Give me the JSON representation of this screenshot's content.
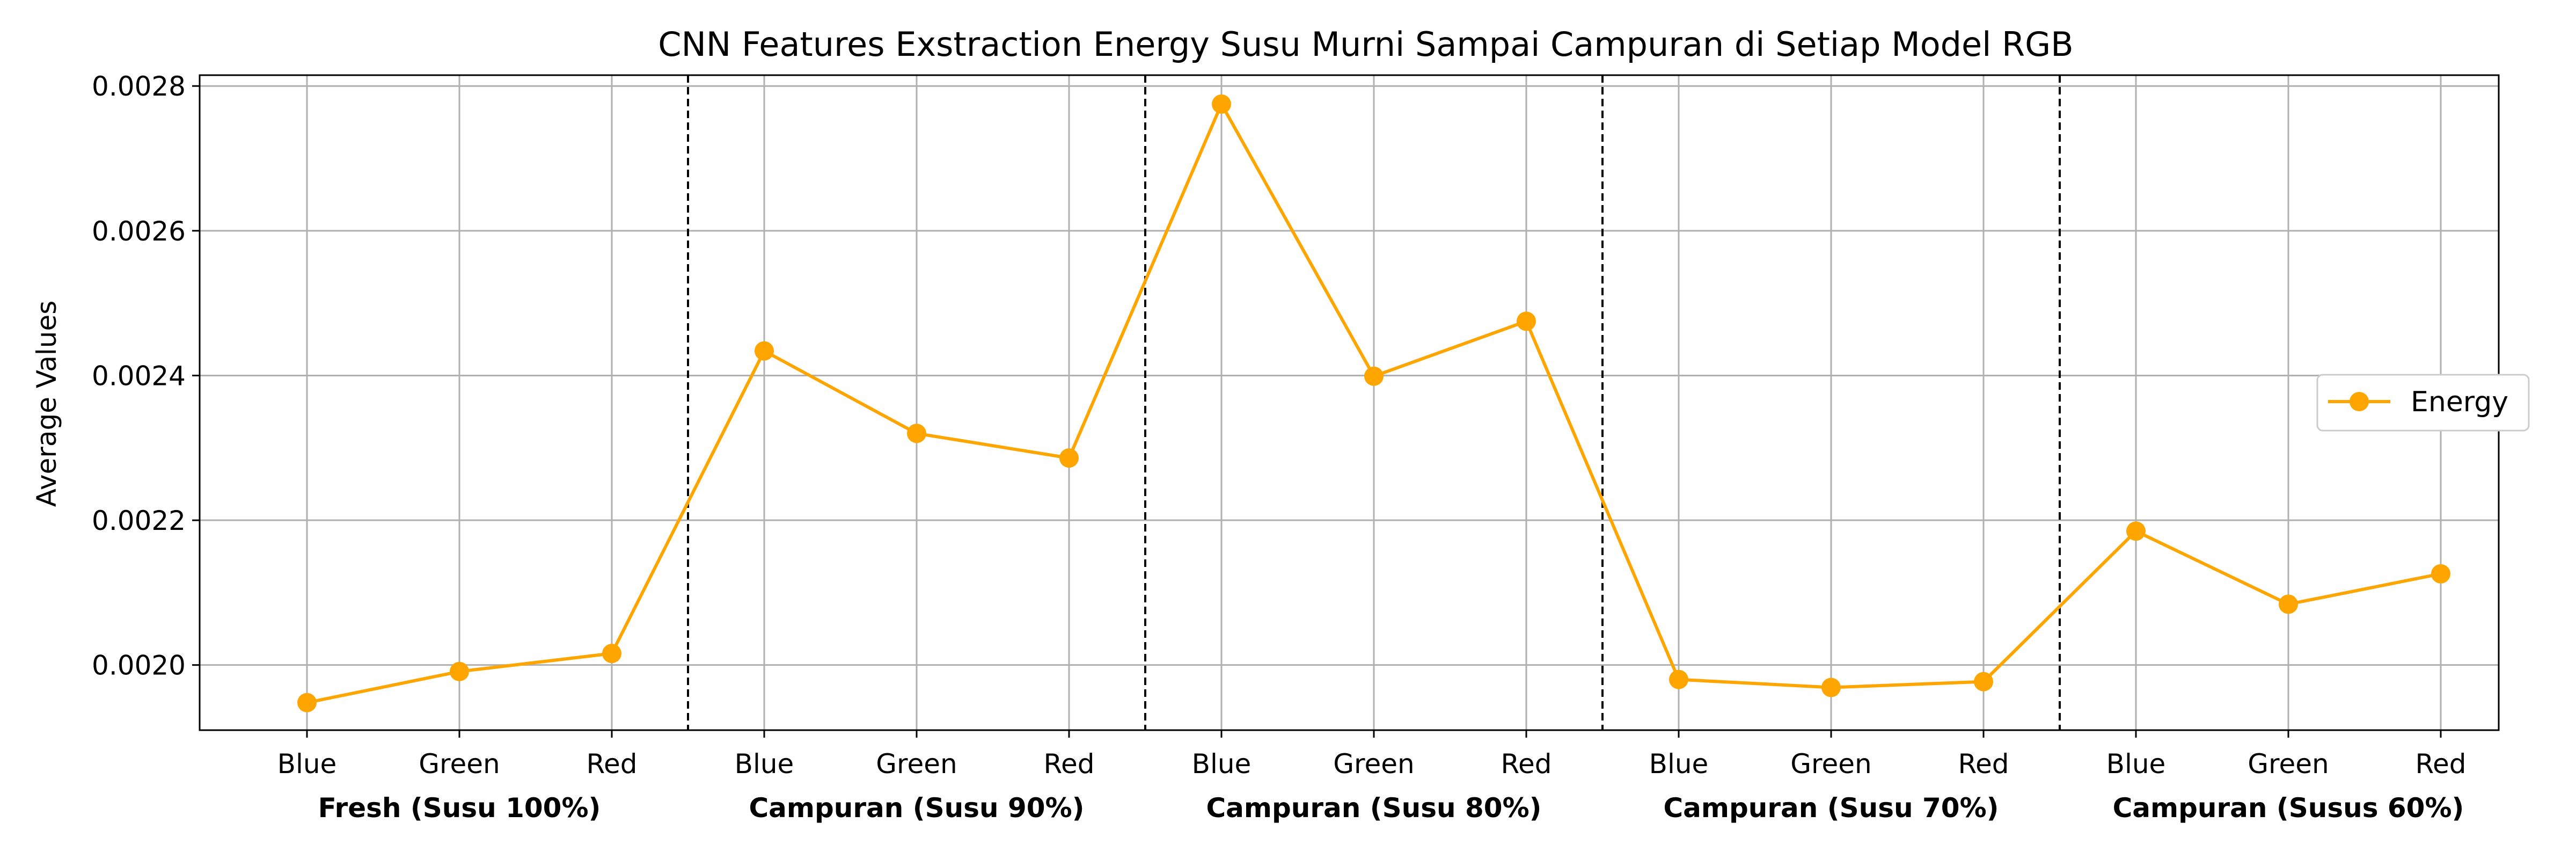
{
  "chart_data": {
    "type": "line",
    "title": "CNN Features Exstraction Energy Susu Murni Sampai Campuran di Setiap Model RGB",
    "xlabel": "",
    "ylabel": "Average Values",
    "categories": [
      "Blue",
      "Green",
      "Red",
      "Blue",
      "Green",
      "Red",
      "Blue",
      "Green",
      "Red",
      "Blue",
      "Green",
      "Red",
      "Blue",
      "Green",
      "Red"
    ],
    "groups": [
      "Fresh (Susu 100%)",
      "Campuran (Susu 90%)",
      "Campuran (Susu 80%)",
      "Campuran (Susu 70%)",
      "Campuran (Susus 60%)"
    ],
    "series": [
      {
        "name": "Energy",
        "color": "#FFA500",
        "values": [
          0.001948,
          0.001991,
          0.002016,
          0.002434,
          0.00232,
          0.002286,
          0.002775,
          0.002399,
          0.002475,
          0.00198,
          0.001969,
          0.001977,
          0.002185,
          0.002084,
          0.002126
        ]
      }
    ],
    "ylim": [
      0.00191,
      0.002815
    ],
    "yticks": [
      0.002,
      0.0022,
      0.0024,
      0.0026,
      0.0028
    ],
    "ytick_labels": [
      "0.0020",
      "0.0022",
      "0.0024",
      "0.0026",
      "0.0028"
    ],
    "group_separators_after": [
      2,
      5,
      8,
      11
    ],
    "grid": true,
    "legend_position": "center-right"
  }
}
